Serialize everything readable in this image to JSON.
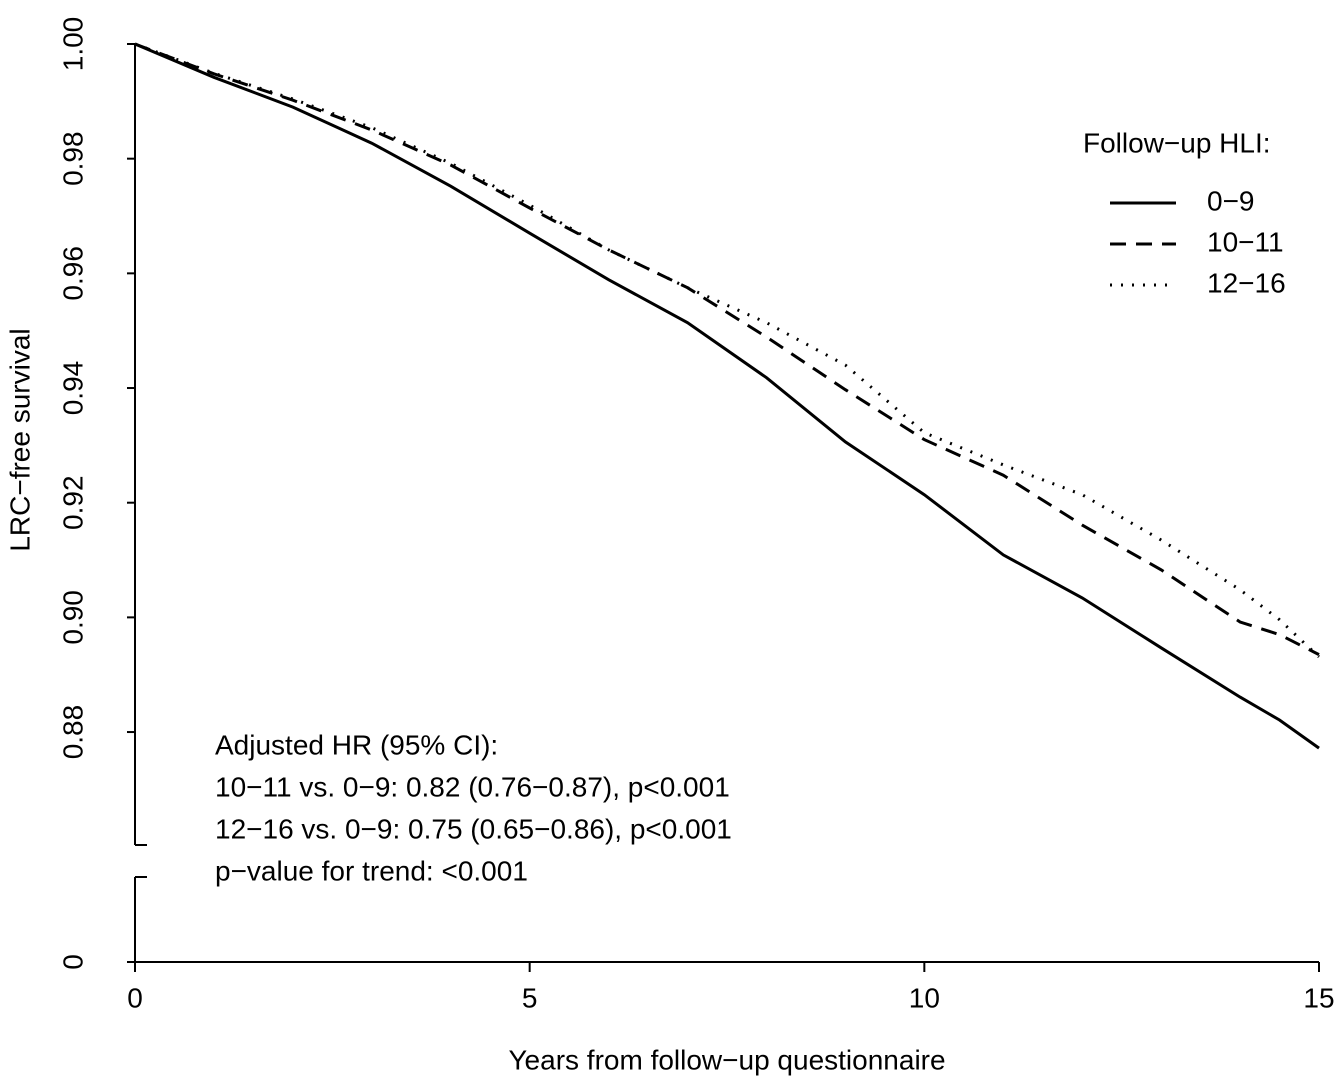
{
  "chart_data": {
    "type": "line",
    "xlabel": "Years from follow−up questionnaire",
    "ylabel": "LRC−free survival",
    "x": [
      0,
      1,
      2,
      3,
      4,
      5,
      6,
      7,
      8,
      9,
      10,
      11,
      12,
      13,
      14,
      14.5,
      15
    ],
    "series": [
      {
        "name": "0−9",
        "color": "#000000",
        "linestyle": "solid",
        "values": [
          1,
          0.9942,
          0.989,
          0.9827,
          0.9752,
          0.967,
          0.9589,
          0.9514,
          0.9418,
          0.9306,
          0.9214,
          0.9109,
          0.9034,
          0.8947,
          0.8861,
          0.8821,
          0.8772
        ]
      },
      {
        "name": "10−11",
        "color": "#000000",
        "linestyle": "dashed",
        "values": [
          1,
          0.9948,
          0.9902,
          0.985,
          0.9789,
          0.9714,
          0.9641,
          0.9575,
          0.9489,
          0.9397,
          0.931,
          0.9248,
          0.9161,
          0.9083,
          0.8992,
          0.897,
          0.8935
        ]
      },
      {
        "name": "12−16",
        "color": "#000000",
        "linestyle": "dotted",
        "values": [
          1,
          0.9949,
          0.9904,
          0.9854,
          0.9792,
          0.9719,
          0.9641,
          0.9575,
          0.9514,
          0.944,
          0.9322,
          0.9266,
          0.9214,
          0.9135,
          0.9048,
          0.8996,
          0.8931
        ]
      }
    ],
    "legend_title": "Follow−up HLI:",
    "legend": "upper right",
    "annotations": [
      "Adjusted HR (95% CI):",
      "10−11 vs. 0−9: 0.82 (0.76−0.87), p<0.001",
      "12−16 vs. 0−9: 0.75 (0.65−0.86), p<0.001",
      "p−value for trend: <0.001"
    ],
    "xlim": [
      0,
      15
    ],
    "xticks": [
      0,
      5,
      10,
      15
    ],
    "ylim": [
      0.8603,
      1
    ],
    "yticks": [
      0.88,
      {
        "value": 0.9,
        "label": "0.90"
      },
      0.92,
      0.94,
      0.96,
      0.98,
      {
        "value": 1,
        "label": "1.00"
      }
    ],
    "ybreak_ticks": [
      0
    ]
  }
}
